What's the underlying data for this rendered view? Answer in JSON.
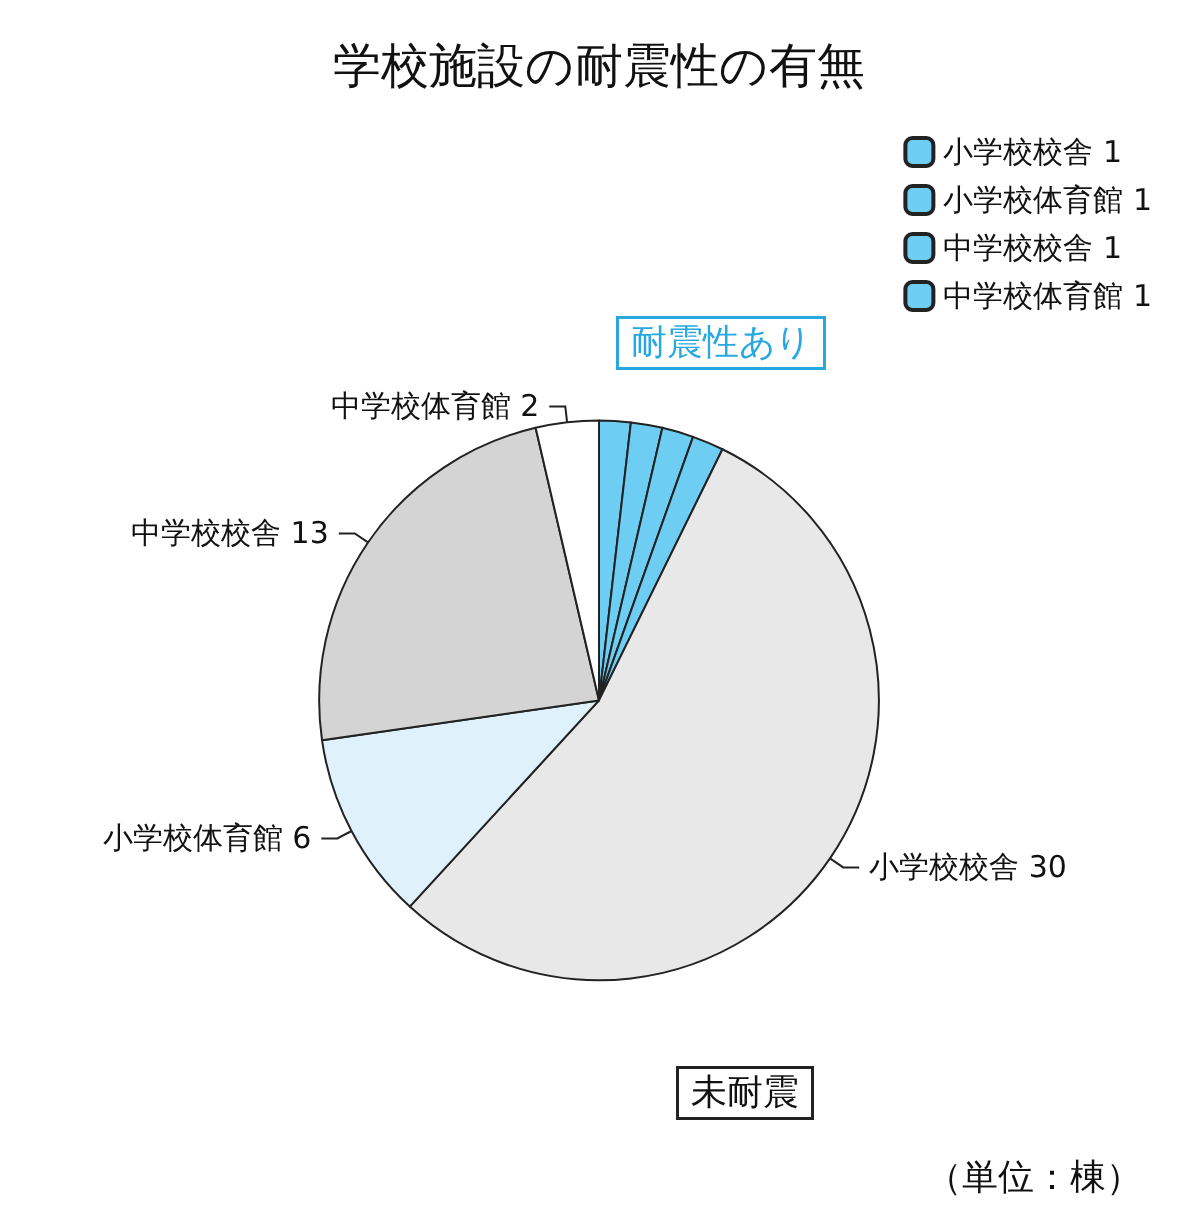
{
  "chart_data": {
    "type": "pie",
    "title": "学校施設の耐震性の有無",
    "categories": [
      "小学校校舎 1",
      "小学校体育館 1",
      "中学校校舎 1",
      "中学校体育館 1",
      "小学校校舎 30",
      "小学校体育館 6",
      "中学校校舎 13",
      "中学校体育館 2"
    ],
    "values": [
      1,
      1,
      1,
      1,
      30,
      6,
      13,
      2
    ],
    "colors": [
      "#6dcdf2",
      "#6dcdf2",
      "#6dcdf2",
      "#6dcdf2",
      "#e8e8e8",
      "#dff1fb",
      "#d4d4d4",
      "#ffffff"
    ],
    "legend": "top right",
    "annotations": [
      "耐震性あり",
      "未耐震",
      "（単位：棟）"
    ]
  }
}
